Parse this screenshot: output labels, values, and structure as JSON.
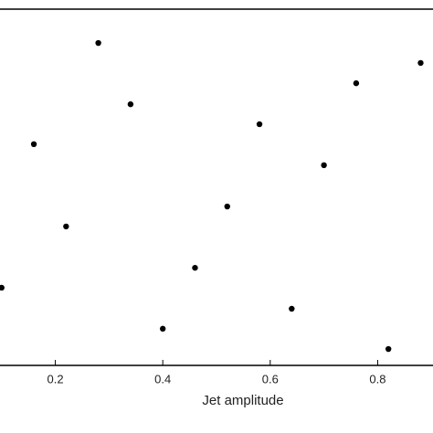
{
  "chart_data": {
    "type": "scatter",
    "x_label": "Jet amplitude",
    "x": [
      0.1,
      0.16,
      0.22,
      0.28,
      0.34,
      0.4,
      0.46,
      0.52,
      0.58,
      0.64,
      0.7,
      0.76,
      0.82,
      0.88
    ],
    "values": [
      0.218,
      0.621,
      0.39,
      0.905,
      0.733,
      0.103,
      0.274,
      0.446,
      0.677,
      0.159,
      0.562,
      0.792,
      0.046,
      0.849
    ],
    "color": "#000000",
    "xlim": [
      0.097,
      0.903
    ],
    "xticks": [
      0.2,
      0.4,
      0.6,
      0.8
    ],
    "ylim": [
      0,
      1
    ]
  }
}
